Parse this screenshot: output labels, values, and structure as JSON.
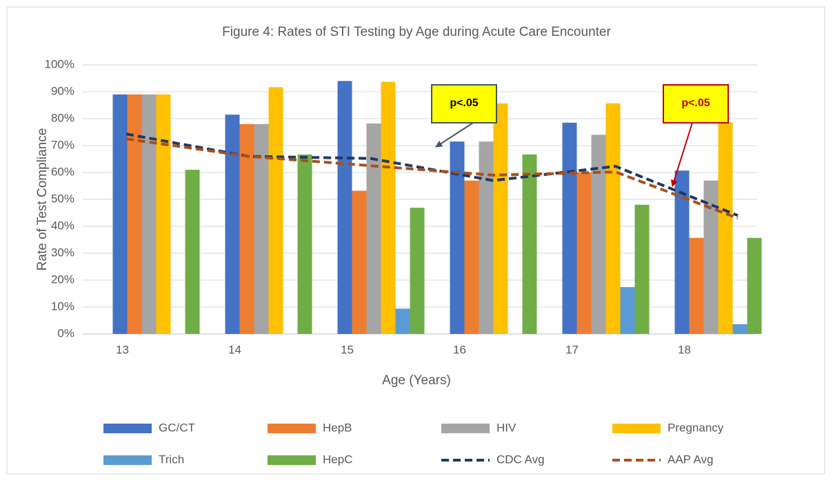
{
  "chart_data": {
    "type": "bar",
    "title": "Figure 4: Rates of STI Testing by Age during Acute Care Encounter",
    "x_label": "Age (Years)",
    "y_label": "Rate of Test Compliance",
    "categories": [
      "13",
      "14",
      "15",
      "16",
      "17",
      "18"
    ],
    "series": [
      {
        "name": "GC/CT",
        "type": "bar",
        "color": "#4472c4",
        "values": [
          89,
          81.5,
          94,
          71.5,
          78.5,
          60.7
        ]
      },
      {
        "name": "HepB",
        "type": "bar",
        "color": "#ed7d31",
        "values": [
          89,
          78,
          53.2,
          57,
          60,
          35.7
        ]
      },
      {
        "name": "HIV",
        "type": "bar",
        "color": "#a5a5a5",
        "values": [
          89,
          78,
          78.2,
          71.5,
          74,
          57
        ]
      },
      {
        "name": "Pregnancy",
        "type": "bar",
        "color": "#ffc000",
        "values": [
          89,
          91.7,
          93.7,
          85.7,
          85.7,
          78.6
        ]
      },
      {
        "name": "Trich",
        "type": "bar",
        "color": "#5b9bd5",
        "values": [
          0,
          0,
          9.4,
          0,
          17.4,
          3.6
        ]
      },
      {
        "name": "HepC",
        "type": "bar",
        "color": "#70ad47",
        "values": [
          61,
          66.7,
          46.9,
          66.7,
          48,
          35.7
        ]
      },
      {
        "name": "CDC Avg",
        "type": "line",
        "color": "#203864",
        "values": [
          74.3,
          66,
          65.2,
          57,
          62.3,
          44
        ]
      },
      {
        "name": "AAP Avg",
        "type": "line",
        "color": "#a9501a",
        "values": [
          72.5,
          66,
          62.5,
          59,
          60.2,
          43
        ]
      }
    ],
    "ylim": [
      0,
      100
    ],
    "yticks": [
      {
        "value": 0,
        "label": "0%"
      },
      {
        "value": 10,
        "label": "10%"
      },
      {
        "value": 20,
        "label": "20%"
      },
      {
        "value": 30,
        "label": "30%"
      },
      {
        "value": 40,
        "label": "40%"
      },
      {
        "value": 50,
        "label": "50%"
      },
      {
        "value": 60,
        "label": "60%"
      },
      {
        "value": 70,
        "label": "70%"
      },
      {
        "value": 80,
        "label": "80%"
      },
      {
        "value": 90,
        "label": "90%"
      },
      {
        "value": 100,
        "label": "100%"
      }
    ],
    "grid": true,
    "legend": "bottom",
    "annotations": [
      {
        "text": "p<.05",
        "color": "#000000",
        "border": "#44546a"
      },
      {
        "text": "p<.05",
        "color": "#c00000",
        "border": "#c00000"
      }
    ]
  }
}
